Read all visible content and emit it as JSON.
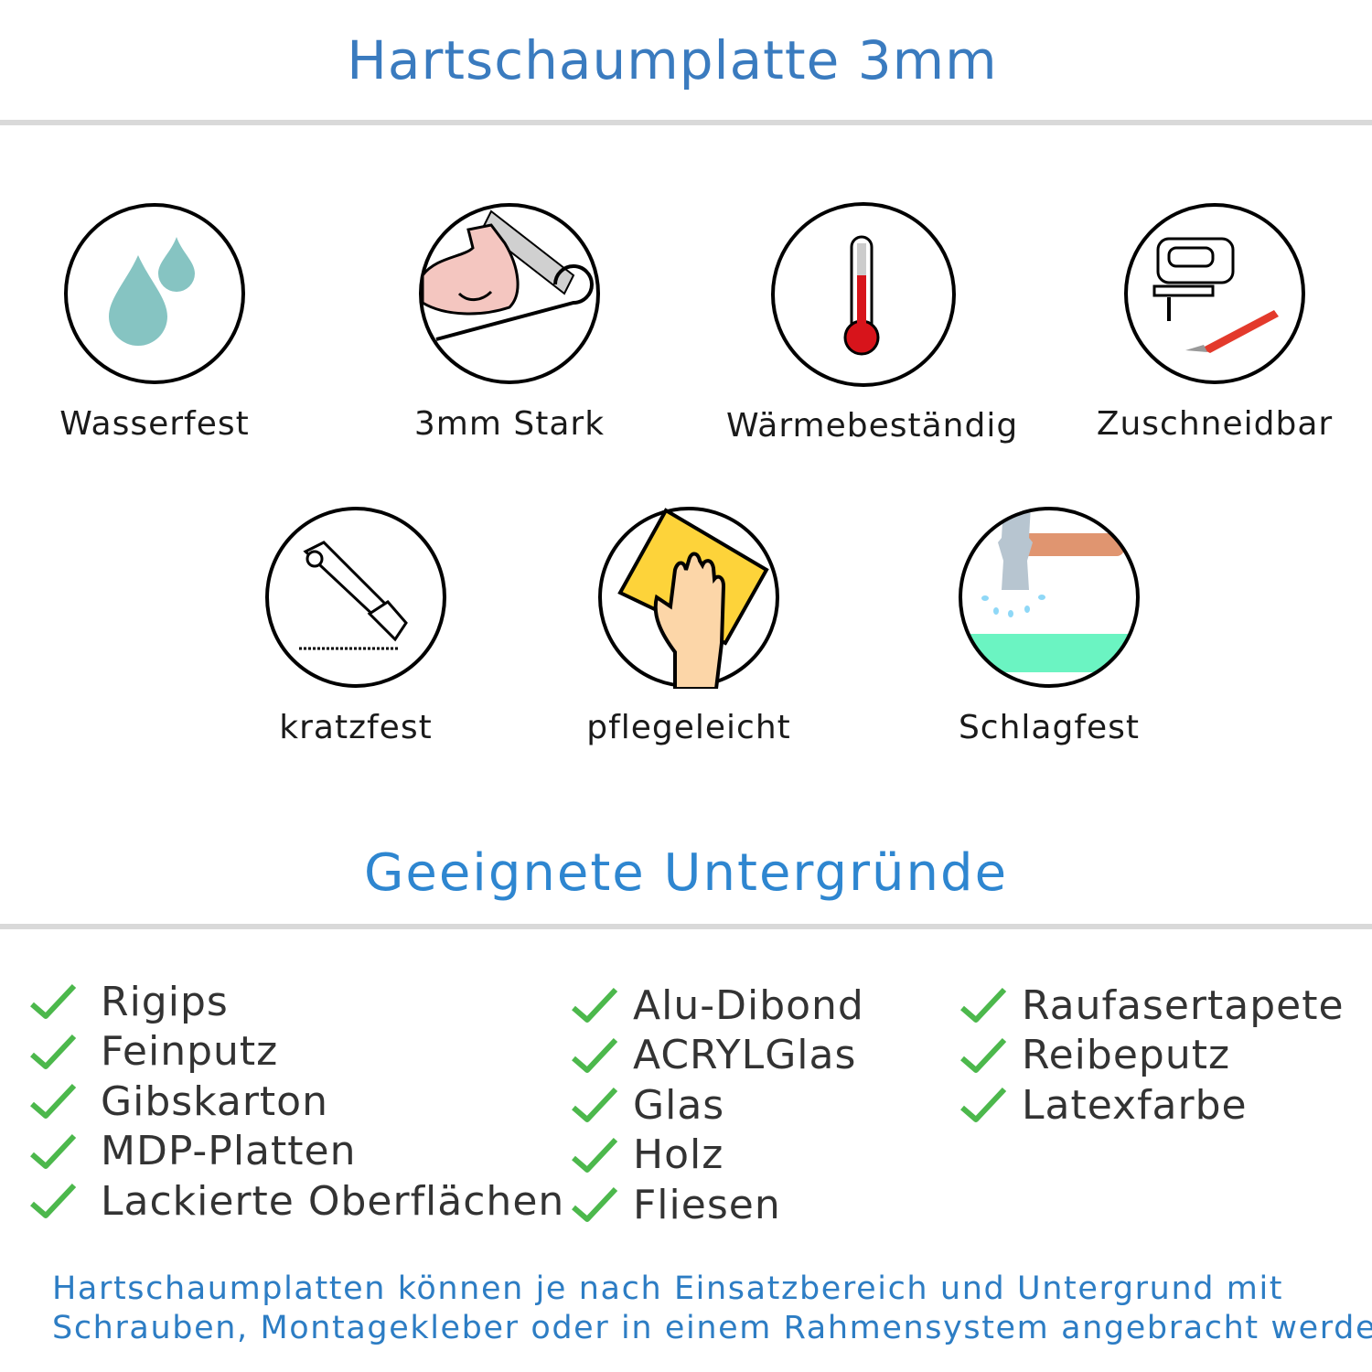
{
  "header": {
    "title": "Hartschaumplatte 3mm"
  },
  "features": [
    {
      "label": "Wasserfest",
      "icon": "water-drops-icon"
    },
    {
      "label": "3mm Stark",
      "icon": "strong-arm-icon"
    },
    {
      "label": "Wärmebeständig",
      "icon": "thermometer-icon"
    },
    {
      "label": "Zuschneidbar",
      "icon": "jigsaw-knife-icon"
    },
    {
      "label": "kratzfest",
      "icon": "cutter-knife-icon"
    },
    {
      "label": "pflegeleicht",
      "icon": "cleaning-sponge-hand-icon"
    },
    {
      "label": "Schlagfest",
      "icon": "hammer-icon"
    }
  ],
  "surfaces": {
    "title": "Geeignete Untergründe",
    "check_color": "#4cb84c",
    "columns": [
      [
        "Rigips",
        "Feinputz",
        "Gibskarton",
        "MDP-Platten",
        "Lackierte Oberflächen"
      ],
      [
        "Alu-Dibond",
        "ACRYLGlas",
        "Glas",
        "Holz",
        "Fliesen"
      ],
      [
        "Raufasertapete",
        "Reibeputz",
        "Latexfarbe"
      ]
    ]
  },
  "note": {
    "lines": [
      "Hartschaumplatten können je nach Einsatzbereich und Untergrund mit",
      "Schrauben, Montagekleber oder in einem Rahmensystem angebracht werden."
    ]
  },
  "colors": {
    "title": "#3a7bbf",
    "heading": "#2e86d0",
    "note": "#2d7dc4",
    "divider": "#d9d9d9"
  }
}
